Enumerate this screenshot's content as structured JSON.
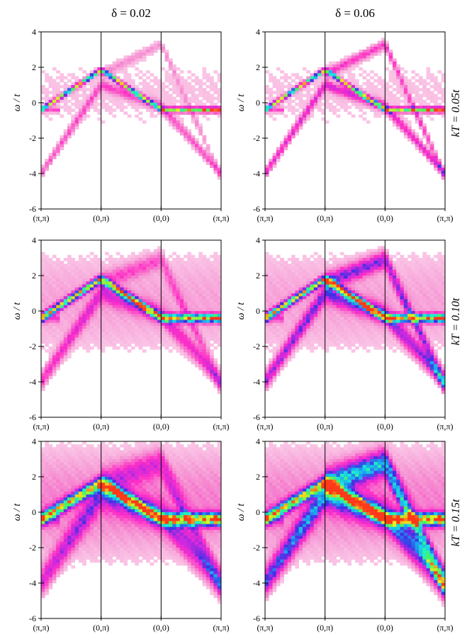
{
  "colors": {
    "background": "#ffffff",
    "colormap": [
      "#fde6f2",
      "#f58ad0",
      "#ff2fc6",
      "#c928e0",
      "#3d2fe6",
      "#1ba7f0",
      "#19f0d4",
      "#4cf25a",
      "#e8f21e",
      "#ff3a1a"
    ]
  },
  "figure": {
    "column_titles": [
      "δ = 0.02",
      "δ = 0.06"
    ],
    "row_titles": [
      "kT = 0.05t",
      "kT = 0.10t",
      "kT = 0.15t"
    ],
    "row_broadening": [
      0.55,
      1.0,
      1.55
    ]
  },
  "chart_data": [
    {
      "type": "heatmap",
      "title": "δ = 0.02",
      "row_label": "kT = 0.05t",
      "ylabel": "ω / t",
      "ylim": [
        -6,
        4
      ],
      "yticks": [
        -6,
        -4,
        -2,
        0,
        2,
        4
      ],
      "xticklabels": [
        "(π,π)",
        "(0,π)",
        "(0,0)",
        "(π,π)"
      ],
      "quasiparticle_band": {
        "k_index": [
          0,
          1,
          2,
          3
        ],
        "omega": [
          -0.4,
          1.85,
          -0.4,
          -0.4
        ]
      },
      "peak_omega_max": 3.3,
      "grid": false
    },
    {
      "type": "heatmap",
      "title": "δ = 0.06",
      "row_label": "kT = 0.05t",
      "ylabel": "ω / t",
      "ylim": [
        -6,
        4
      ],
      "yticks": [
        -6,
        -4,
        -2,
        0,
        2,
        4
      ],
      "xticklabels": [
        "(π,π)",
        "(0,π)",
        "(0,0)",
        "(π,π)"
      ],
      "quasiparticle_band": {
        "k_index": [
          0,
          1,
          2,
          3
        ],
        "omega": [
          -0.4,
          1.85,
          -0.4,
          -0.4
        ]
      },
      "peak_omega_max": 3.3,
      "grid": false
    },
    {
      "type": "heatmap",
      "title": "δ = 0.02",
      "row_label": "kT = 0.10t",
      "ylabel": "ω / t",
      "ylim": [
        -6,
        4
      ],
      "yticks": [
        -6,
        -4,
        -2,
        0,
        2,
        4
      ],
      "xticklabels": [
        "(π,π)",
        "(0,π)",
        "(0,0)",
        "(π,π)"
      ],
      "quasiparticle_band": {
        "k_index": [
          0,
          1,
          2,
          3
        ],
        "omega": [
          -0.4,
          1.8,
          -0.4,
          -0.4
        ]
      },
      "peak_omega_max": 2.9,
      "grid": false
    },
    {
      "type": "heatmap",
      "title": "δ = 0.06",
      "row_label": "kT = 0.10t",
      "ylabel": "ω / t",
      "ylim": [
        -6,
        4
      ],
      "yticks": [
        -6,
        -4,
        -2,
        0,
        2,
        4
      ],
      "xticklabels": [
        "(π,π)",
        "(0,π)",
        "(0,0)",
        "(π,π)"
      ],
      "quasiparticle_band": {
        "k_index": [
          0,
          1,
          2,
          3
        ],
        "omega": [
          -0.4,
          1.8,
          -0.4,
          -0.4
        ]
      },
      "peak_omega_max": 2.9,
      "grid": false
    },
    {
      "type": "heatmap",
      "title": "δ = 0.02",
      "row_label": "kT = 0.15t",
      "ylabel": "ω / t",
      "ylim": [
        -6,
        4
      ],
      "yticks": [
        -6,
        -4,
        -2,
        0,
        2,
        4
      ],
      "xticklabels": [
        "(π,π)",
        "(0,π)",
        "(0,0)",
        "(π,π)"
      ],
      "quasiparticle_band": {
        "k_index": [
          0,
          1,
          2,
          3
        ],
        "omega": [
          -0.4,
          1.65,
          -0.4,
          -0.4
        ]
      },
      "peak_omega_max": 2.8,
      "grid": false
    },
    {
      "type": "heatmap",
      "title": "δ = 0.06",
      "row_label": "kT = 0.15t",
      "ylabel": "ω / t",
      "ylim": [
        -6,
        4
      ],
      "yticks": [
        -6,
        -4,
        -2,
        0,
        2,
        4
      ],
      "xticklabels": [
        "(π,π)",
        "(0,π)",
        "(0,0)",
        "(π,π)"
      ],
      "quasiparticle_band": {
        "k_index": [
          0,
          1,
          2,
          3
        ],
        "omega": [
          -0.4,
          1.65,
          -0.4,
          -0.4
        ]
      },
      "peak_omega_max": 2.8,
      "grid": false
    }
  ]
}
